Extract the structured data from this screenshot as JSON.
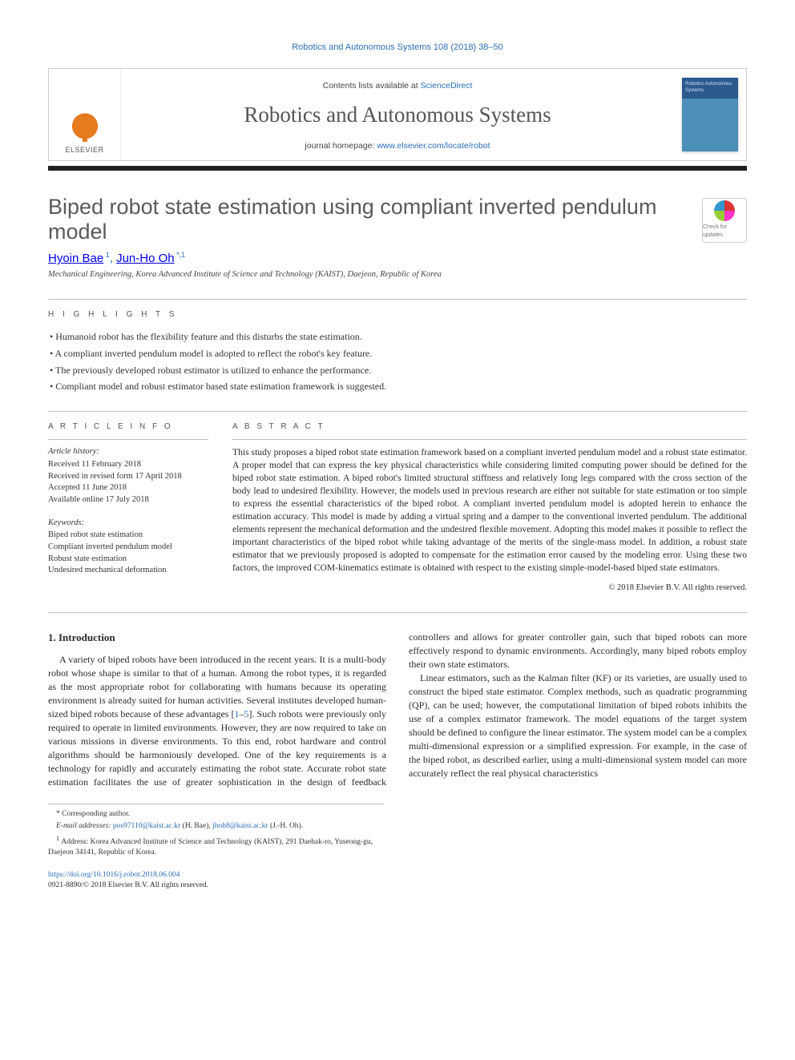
{
  "running_header": "Robotics and Autonomous Systems 108 (2018) 38–50",
  "masthead": {
    "publisher": "ELSEVIER",
    "contents_prefix": "Contents lists available at ",
    "contents_link": "ScienceDirect",
    "journal_title": "Robotics and Autonomous Systems",
    "homepage_prefix": "journal homepage: ",
    "homepage_link": "www.elsevier.com/locate/robot",
    "cover_text": "Robotics Autonomous Systems"
  },
  "article": {
    "title": "Biped robot state estimation using compliant inverted pendulum model",
    "check_updates": "Check for updates",
    "authors_html": "Hyoin Bae 1, Jun-Ho Oh *,1",
    "author1": "Hyoin Bae",
    "author1_sup": "1",
    "author_sep": ", ",
    "author2": "Jun-Ho Oh",
    "author2_sup": "*,1",
    "affiliation": "Mechanical Engineering, Korea Advanced Institute of Science and Technology (KAIST), Daejeon, Republic of Korea"
  },
  "highlights": {
    "label": "H I G H L I G H T S",
    "items": [
      "Humanoid robot has the flexibility feature and this disturbs the state estimation.",
      "A compliant inverted pendulum model is adopted to reflect the robot's key feature.",
      "The previously developed robust estimator is utilized to enhance the performance.",
      "Compliant model and robust estimator based state estimation framework is suggested."
    ]
  },
  "info": {
    "label": "A R T I C L E   I N F O",
    "history_head": "Article history:",
    "history": [
      "Received 11 February 2018",
      "Received in revised form 17 April 2018",
      "Accepted 11 June 2018",
      "Available online 17 July 2018"
    ],
    "keywords_head": "Keywords:",
    "keywords": [
      "Biped robot state estimation",
      "Compliant inverted pendulum model",
      "Robust state estimation",
      "Undesired mechanical deformation"
    ]
  },
  "abstract": {
    "label": "A B S T R A C T",
    "text": "This study proposes a biped robot state estimation framework based on a compliant inverted pendulum model and a robust state estimator. A proper model that can express the key physical characteristics while considering limited computing power should be defined for the biped robot state estimation. A biped robot's limited structural stiffness and relatively long legs compared with the cross section of the body lead to undesired flexibility. However, the models used in previous research are either not suitable for state estimation or too simple to express the essential characteristics of the biped robot. A compliant inverted pendulum model is adopted herein to enhance the estimation accuracy. This model is made by adding a virtual spring and a damper to the conventional inverted pendulum. The additional elements represent the mechanical deformation and the undesired flexible movement. Adopting this model makes it possible to reflect the important characteristics of the biped robot while taking advantage of the merits of the single-mass model. In addition, a robust state estimator that we previously proposed is adopted to compensate for the estimation error caused by the modeling error. Using these two factors, the improved COM-kinematics estimate is obtained with respect to the existing simple-model-based biped state estimators.",
    "copyright": "© 2018 Elsevier B.V. All rights reserved."
  },
  "body": {
    "section_number": "1.",
    "section_title": "Introduction",
    "para1": "A variety of biped robots have been introduced in the recent years. It is a multi-body robot whose shape is similar to that of a human. Among the robot types, it is regarded as the most appropriate robot for collaborating with humans because its operating environment is already suited for human activities. Several institutes developed human-sized biped robots because of these advantages [1–5]. Such robots were previously only required to operate in limited environments. However, they are now required to take on various missions in diverse environments. To this end, robot hardware and control algorithms should be harmoniously",
    "ref1": "1",
    "ref2": "5",
    "para2": "developed. One of the key requirements is a technology for rapidly and accurately estimating the robot state. Accurate robot state estimation facilitates the use of greater sophistication in the design of feedback controllers and allows for greater controller gain, such that biped robots can more effectively respond to dynamic environments. Accordingly, many biped robots employ their own state estimators.",
    "para3": "Linear estimators, such as the Kalman filter (KF) or its varieties, are usually used to construct the biped state estimator. Complex methods, such as quadratic programming (QP), can be used; however, the computational limitation of biped robots inhibits the use of a complex estimator framework. The model equations of the target system should be defined to configure the linear estimator. The system model can be a complex multi-dimensional expression or a simplified expression. For example, in the case of the biped robot, as described earlier, using a multi-dimensional system model can more accurately reflect the real physical characteristics"
  },
  "footnotes": {
    "corr": "Corresponding author.",
    "email_label": "E-mail addresses: ",
    "email1": "pos97110@kaist.ac.kr",
    "email1_name": " (H. Bae), ",
    "email2": "jhoh8@kaist.ac.kr",
    "email2_name": " (J.-H. Oh).",
    "addr_sup": "1",
    "addr": "Address: Korea Advanced Institute of Science and Technology (KAIST), 291 Daehak-ro, Yuseong-gu, Daejeon 34141, Republic of Korea."
  },
  "doi": {
    "link": "https://doi.org/10.1016/j.robot.2018.06.004",
    "issn_line": "0921-8890/© 2018 Elsevier B.V. All rights reserved."
  },
  "colors": {
    "link": "#2a6ebb",
    "text": "#2b2b2b",
    "rule": "#bfbfbf",
    "elsevier_orange": "#e67a1f",
    "blackbar": "#231f20",
    "cover_top": "#2b5a8f",
    "cover_bottom": "#4b8fb8"
  }
}
